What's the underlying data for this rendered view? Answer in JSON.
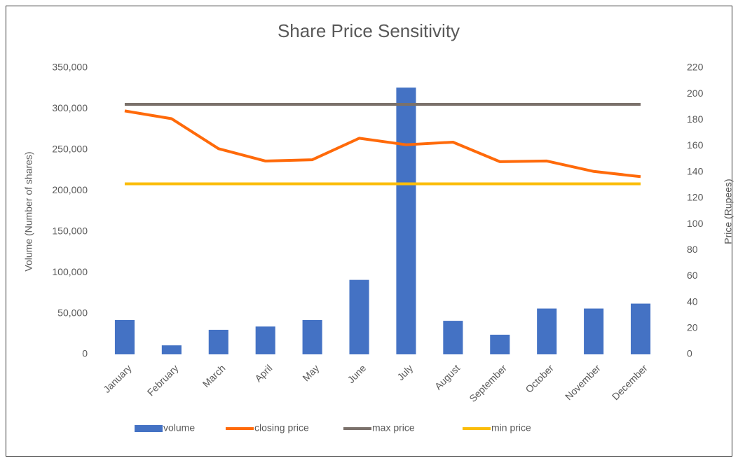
{
  "chart_data": {
    "type": "bar-line",
    "title": "Share Price Sensitivity",
    "y_label": "Volume (Number of shares)",
    "y2_label": "Price (Rupees)",
    "categories": [
      "January",
      "February",
      "March",
      "April",
      "May",
      "June",
      "July",
      "August",
      "September",
      "October",
      "November",
      "December"
    ],
    "series": [
      {
        "name": "volume",
        "type": "bar",
        "color": "#4472c4",
        "values": [
          42000,
          11000,
          30000,
          34000,
          42000,
          91000,
          326000,
          41000,
          24000,
          56000,
          56000,
          62000
        ]
      },
      {
        "name": "closing price",
        "type": "line",
        "axis": "y2",
        "color": "#ff6a0a",
        "values": [
          187,
          181,
          158,
          148.5,
          149.5,
          166,
          161,
          163,
          148,
          148.5,
          140.5,
          136.5
        ]
      },
      {
        "name": "max price",
        "type": "line",
        "axis": "y2",
        "color": "#7b716b",
        "values": [
          192,
          192,
          192,
          192,
          192,
          192,
          192,
          192,
          192,
          192,
          192,
          192
        ]
      },
      {
        "name": "min price",
        "type": "line",
        "axis": "y2",
        "color": "#fbbd0a",
        "values": [
          131,
          131,
          131,
          131,
          131,
          131,
          131,
          131,
          131,
          131,
          131,
          131
        ]
      }
    ],
    "ylim": [
      0,
      350000
    ],
    "yticks": [
      {
        "value": 0,
        "label": "0"
      },
      {
        "value": 50000,
        "label": "50,000"
      },
      {
        "value": 100000,
        "label": "100,000"
      },
      {
        "value": 150000,
        "label": "150,000"
      },
      {
        "value": 200000,
        "label": "200,000"
      },
      {
        "value": 250000,
        "label": "250,000"
      },
      {
        "value": 300000,
        "label": "300,000"
      },
      {
        "value": 350000,
        "label": "350,000"
      }
    ],
    "y2lim": [
      0,
      220
    ],
    "y2ticks": [
      0,
      20,
      40,
      60,
      80,
      100,
      120,
      140,
      160,
      180,
      200,
      220
    ],
    "legend": "bottom"
  }
}
